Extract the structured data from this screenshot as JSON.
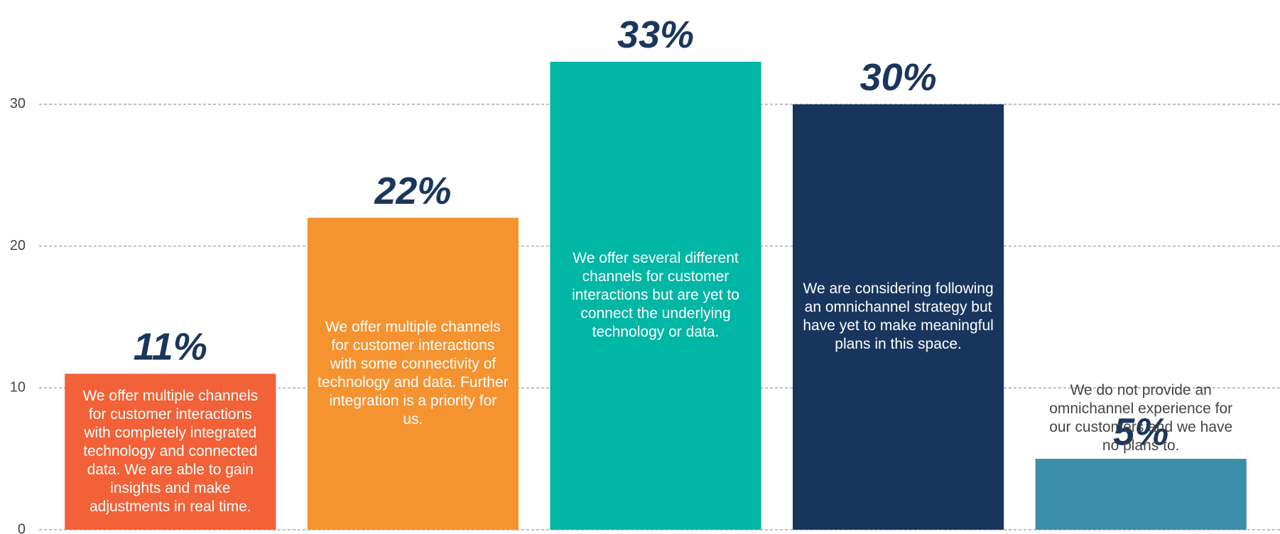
{
  "chart_data": {
    "type": "bar",
    "categories": [
      "We offer multiple channels for customer interactions with completely integrated technology and connected data. We are able to gain insights and make adjustments in real time.",
      "We offer multiple channels for customer interactions with some connectivity of technology and data. Further integration is a priority for us.",
      "We offer several different channels for customer interactions but are yet to connect the underlying technology or data.",
      "We are considering following an omnichannel strategy but have yet to make meaningful plans in this space.",
      "We do not provide an omnichannel experience for our customers and we have no plans to."
    ],
    "values": [
      11,
      22,
      33,
      30,
      5
    ],
    "value_labels": [
      "11%",
      "22%",
      "33%",
      "30%",
      "5%"
    ],
    "colors": [
      "#f26137",
      "#f59331",
      "#00b6a4",
      "#18365d",
      "#3c8fa8"
    ],
    "ylim": [
      0,
      35
    ],
    "yticks": [
      0,
      10,
      20,
      30
    ],
    "grid": true
  }
}
